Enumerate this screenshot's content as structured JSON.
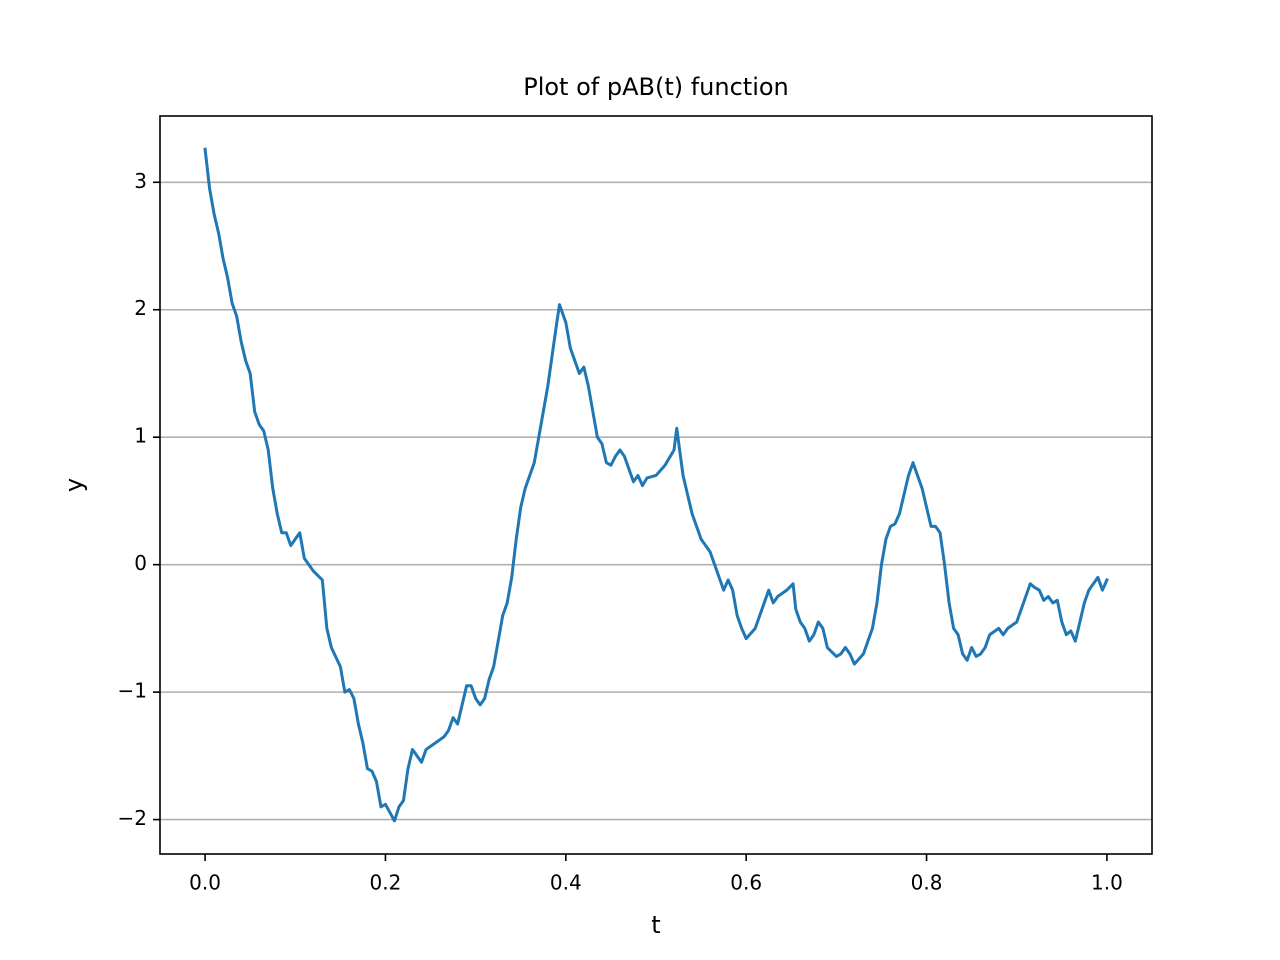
{
  "chart_data": {
    "type": "line",
    "title": "Plot of pAB(t) function",
    "xlabel": "t",
    "ylabel": "y",
    "color": "#1f77b4",
    "grid": "y",
    "xlim": [
      -0.05,
      1.05
    ],
    "ylim": [
      -2.27,
      3.52
    ],
    "xticks": [
      {
        "value": 0,
        "label": "0.0"
      },
      {
        "value": 0.2,
        "label": "0.2"
      },
      {
        "value": 0.4,
        "label": "0.4"
      },
      {
        "value": 0.6,
        "label": "0.6"
      },
      {
        "value": 0.8,
        "label": "0.8"
      },
      {
        "value": 1,
        "label": "1.0"
      }
    ],
    "yticks": [
      {
        "value": -2,
        "label": "−2"
      },
      {
        "value": -1,
        "label": "−1"
      },
      0,
      1,
      2,
      3
    ],
    "x": [
      0.0,
      0.005,
      0.01,
      0.015,
      0.02,
      0.025,
      0.03,
      0.035,
      0.04,
      0.045,
      0.05,
      0.055,
      0.06,
      0.065,
      0.07,
      0.075,
      0.08,
      0.085,
      0.09,
      0.095,
      0.1,
      0.105,
      0.11,
      0.115,
      0.12,
      0.13,
      0.135,
      0.14,
      0.15,
      0.155,
      0.16,
      0.165,
      0.17,
      0.175,
      0.18,
      0.185,
      0.19,
      0.195,
      0.2,
      0.21,
      0.215,
      0.22,
      0.225,
      0.23,
      0.235,
      0.24,
      0.245,
      0.255,
      0.265,
      0.27,
      0.275,
      0.28,
      0.285,
      0.29,
      0.295,
      0.3,
      0.305,
      0.31,
      0.315,
      0.32,
      0.325,
      0.33,
      0.335,
      0.34,
      0.345,
      0.35,
      0.355,
      0.36,
      0.365,
      0.37,
      0.375,
      0.38,
      0.385,
      0.39,
      0.393,
      0.4,
      0.405,
      0.41,
      0.415,
      0.42,
      0.425,
      0.43,
      0.435,
      0.44,
      0.445,
      0.45,
      0.455,
      0.46,
      0.465,
      0.47,
      0.475,
      0.48,
      0.485,
      0.49,
      0.5,
      0.51,
      0.52,
      0.523,
      0.53,
      0.54,
      0.55,
      0.56,
      0.565,
      0.57,
      0.575,
      0.58,
      0.585,
      0.59,
      0.595,
      0.6,
      0.61,
      0.615,
      0.62,
      0.625,
      0.63,
      0.635,
      0.645,
      0.652,
      0.655,
      0.66,
      0.665,
      0.67,
      0.675,
      0.68,
      0.685,
      0.69,
      0.7,
      0.705,
      0.71,
      0.715,
      0.72,
      0.73,
      0.735,
      0.74,
      0.745,
      0.75,
      0.755,
      0.76,
      0.765,
      0.77,
      0.775,
      0.78,
      0.785,
      0.79,
      0.795,
      0.8,
      0.805,
      0.81,
      0.815,
      0.82,
      0.825,
      0.83,
      0.835,
      0.84,
      0.845,
      0.85,
      0.855,
      0.86,
      0.865,
      0.87,
      0.88,
      0.885,
      0.89,
      0.9,
      0.905,
      0.91,
      0.915,
      0.92,
      0.925,
      0.93,
      0.935,
      0.94,
      0.945,
      0.95,
      0.955,
      0.96,
      0.965,
      0.97,
      0.975,
      0.98,
      0.985,
      0.99,
      0.995,
      1.0
    ],
    "values": [
      3.26,
      2.95,
      2.75,
      2.6,
      2.4,
      2.25,
      2.05,
      1.95,
      1.75,
      1.6,
      1.5,
      1.2,
      1.1,
      1.05,
      0.9,
      0.6,
      0.4,
      0.25,
      0.25,
      0.15,
      0.2,
      0.25,
      0.05,
      0.0,
      -0.05,
      -0.12,
      -0.5,
      -0.65,
      -0.8,
      -1.0,
      -0.98,
      -1.05,
      -1.25,
      -1.4,
      -1.6,
      -1.62,
      -1.7,
      -1.9,
      -1.88,
      -2.01,
      -1.9,
      -1.85,
      -1.6,
      -1.45,
      -1.5,
      -1.55,
      -1.45,
      -1.4,
      -1.35,
      -1.3,
      -1.2,
      -1.25,
      -1.1,
      -0.95,
      -0.95,
      -1.05,
      -1.1,
      -1.05,
      -0.9,
      -0.8,
      -0.6,
      -0.4,
      -0.3,
      -0.1,
      0.2,
      0.45,
      0.6,
      0.7,
      0.8,
      1.0,
      1.2,
      1.4,
      1.65,
      1.9,
      2.04,
      1.9,
      1.7,
      1.6,
      1.5,
      1.55,
      1.4,
      1.2,
      1.0,
      0.95,
      0.8,
      0.78,
      0.85,
      0.9,
      0.85,
      0.75,
      0.65,
      0.7,
      0.62,
      0.68,
      0.7,
      0.78,
      0.9,
      1.07,
      0.7,
      0.4,
      0.2,
      0.1,
      0.0,
      -0.1,
      -0.2,
      -0.12,
      -0.2,
      -0.4,
      -0.5,
      -0.58,
      -0.5,
      -0.4,
      -0.3,
      -0.2,
      -0.3,
      -0.25,
      -0.2,
      -0.15,
      -0.35,
      -0.45,
      -0.5,
      -0.6,
      -0.55,
      -0.45,
      -0.5,
      -0.65,
      -0.72,
      -0.7,
      -0.65,
      -0.7,
      -0.78,
      -0.7,
      -0.6,
      -0.5,
      -0.3,
      0.0,
      0.2,
      0.3,
      0.32,
      0.4,
      0.55,
      0.7,
      0.8,
      0.7,
      0.6,
      0.45,
      0.3,
      0.3,
      0.25,
      0.0,
      -0.3,
      -0.5,
      -0.55,
      -0.7,
      -0.75,
      -0.65,
      -0.72,
      -0.7,
      -0.65,
      -0.55,
      -0.5,
      -0.55,
      -0.5,
      -0.45,
      -0.35,
      -0.25,
      -0.15,
      -0.18,
      -0.2,
      -0.28,
      -0.25,
      -0.3,
      -0.28,
      -0.45,
      -0.55,
      -0.52,
      -0.6,
      -0.45,
      -0.3,
      -0.2,
      -0.15,
      -0.1,
      -0.2,
      -0.12
    ]
  }
}
